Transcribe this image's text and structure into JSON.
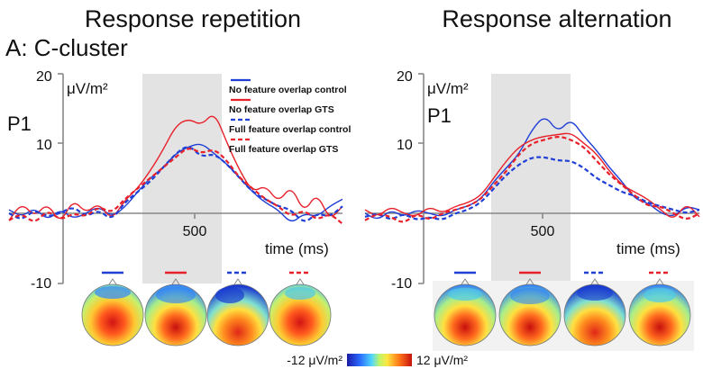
{
  "panel_label": "A: C-cluster",
  "units": {
    "y_unit": "μV/m²",
    "x_label": "time (ms)",
    "component": "P1"
  },
  "colorbar": {
    "min_label": "-12 μV/m²",
    "max_label": "12 μV/m²"
  },
  "colors": {
    "no_overlap_control": "#1f3fd6",
    "no_overlap_gts": "#e8202a",
    "shade": "#e3e3e3",
    "axis": "#888888"
  },
  "chart_data": [
    {
      "type": "line",
      "title": "Response repetition",
      "xlabel": "time (ms)",
      "ylabel": "μV/m²",
      "xlim": [
        -300,
        1000
      ],
      "ylim": [
        -10,
        20
      ],
      "ytick_labels": [
        "20",
        "10",
        "-10"
      ],
      "xtick_labels": [
        "500"
      ],
      "shaded_interval_ms": [
        300,
        600
      ],
      "component_label": "P1",
      "legend": [
        "No feature overlap control",
        "No feature overlap GTS",
        "Full feature overlap control",
        "Full feature overlap GTS"
      ],
      "series": [
        {
          "name": "No feature overlap control",
          "color": "#1f3fd6",
          "dash": "solid",
          "x": [
            -300,
            -250,
            -200,
            -150,
            -100,
            -50,
            0,
            50,
            100,
            150,
            200,
            250,
            300,
            350,
            400,
            450,
            500,
            550,
            600,
            650,
            700,
            750,
            800,
            850,
            900,
            950,
            1000
          ],
          "values": [
            0.5,
            -0.5,
            0.8,
            -1,
            0.6,
            -0.8,
            0,
            1,
            -0.5,
            0.8,
            3,
            5,
            6.5,
            8.5,
            9.5,
            10,
            8.5,
            7,
            5,
            3,
            1.5,
            0.5,
            -1.5,
            0,
            -0.5,
            1,
            2
          ]
        },
        {
          "name": "No feature overlap GTS",
          "color": "#e8202a",
          "dash": "solid",
          "x": [
            -300,
            -250,
            -200,
            -150,
            -100,
            -50,
            0,
            50,
            100,
            150,
            200,
            250,
            300,
            350,
            400,
            450,
            500,
            550,
            600,
            650,
            700,
            750,
            800,
            850,
            900,
            950,
            1000
          ],
          "values": [
            -1,
            1.5,
            -0.5,
            1.5,
            -1.5,
            2,
            0,
            1.5,
            -1,
            1.8,
            3.5,
            6,
            9,
            12.5,
            13.5,
            12.5,
            14.5,
            10,
            6,
            3,
            4,
            1.5,
            4,
            0,
            3,
            -1,
            1
          ]
        },
        {
          "name": "Full feature overlap control",
          "color": "#1f3fd6",
          "dash": "dashed",
          "x": [
            -300,
            -250,
            -200,
            -150,
            -100,
            -50,
            0,
            50,
            100,
            150,
            200,
            250,
            300,
            350,
            400,
            450,
            500,
            550,
            600,
            650,
            700,
            750,
            800,
            850,
            900,
            950,
            1000
          ],
          "values": [
            0,
            -1,
            0.5,
            -0.5,
            0,
            1,
            -0.5,
            0.5,
            -1,
            1.5,
            3,
            4.5,
            6.5,
            8.5,
            9.8,
            8,
            8.5,
            7,
            5,
            3,
            2,
            1,
            0.5,
            -1.5,
            0,
            -0.5,
            1
          ]
        },
        {
          "name": "Full feature overlap GTS",
          "color": "#e8202a",
          "dash": "dashed",
          "x": [
            -300,
            -250,
            -200,
            -150,
            -100,
            -50,
            0,
            50,
            100,
            150,
            200,
            250,
            300,
            350,
            400,
            450,
            500,
            550,
            600,
            650,
            700,
            750,
            800,
            850,
            900,
            950,
            1000
          ],
          "values": [
            -1,
            0,
            -1.5,
            0.5,
            -1,
            0,
            -0.5,
            1,
            0,
            2,
            3.5,
            5,
            6.5,
            8,
            9.5,
            8.5,
            9.2,
            7.5,
            5,
            3.5,
            2,
            1,
            -0.5,
            0.5,
            -1,
            0,
            -1.5
          ]
        }
      ]
    },
    {
      "type": "line",
      "title": "Response alternation",
      "xlabel": "time (ms)",
      "ylabel": "μV/m²",
      "xlim": [
        -300,
        1000
      ],
      "ylim": [
        -10,
        20
      ],
      "ytick_labels": [
        "20",
        "10",
        "-10"
      ],
      "xtick_labels": [
        "500"
      ],
      "shaded_interval_ms": [
        300,
        600
      ],
      "component_label": "P1",
      "series": [
        {
          "name": "No feature overlap control",
          "color": "#1f3fd6",
          "dash": "solid",
          "x": [
            -300,
            -250,
            -200,
            -150,
            -100,
            -50,
            0,
            50,
            100,
            150,
            200,
            250,
            300,
            350,
            400,
            450,
            500,
            550,
            600,
            650,
            700,
            750,
            800,
            850,
            900,
            950,
            1000
          ],
          "values": [
            0,
            -1,
            0.5,
            -0.5,
            0.5,
            0,
            -0.5,
            0.5,
            1,
            2,
            4.5,
            6.5,
            8.5,
            12,
            14,
            11.5,
            13.5,
            11,
            9,
            6.5,
            4.5,
            2,
            1.5,
            0,
            -0.5,
            1,
            0.5
          ]
        },
        {
          "name": "No feature overlap GTS",
          "color": "#e8202a",
          "dash": "solid",
          "x": [
            -300,
            -250,
            -200,
            -150,
            -100,
            -50,
            0,
            50,
            100,
            150,
            200,
            250,
            300,
            350,
            400,
            450,
            500,
            550,
            600,
            650,
            700,
            750,
            800,
            850,
            900,
            950,
            1000
          ],
          "values": [
            0.5,
            -0.5,
            1,
            0,
            -0.5,
            1,
            0,
            1,
            1.5,
            2.5,
            5,
            7.5,
            9.5,
            10.5,
            11,
            11.2,
            11.5,
            10,
            8.5,
            6,
            4,
            3,
            2,
            0.5,
            -1,
            1.5,
            -0.5
          ]
        },
        {
          "name": "Full feature overlap control",
          "color": "#1f3fd6",
          "dash": "dashed",
          "x": [
            -300,
            -250,
            -200,
            -150,
            -100,
            -50,
            0,
            50,
            100,
            150,
            200,
            250,
            300,
            350,
            400,
            450,
            500,
            550,
            600,
            650,
            700,
            750,
            800,
            850,
            900,
            950,
            1000
          ],
          "values": [
            -0.5,
            0,
            -1,
            0,
            -1,
            -0.5,
            -1,
            0,
            0.5,
            1.5,
            3.5,
            5.5,
            7,
            8,
            8,
            7.5,
            7.5,
            6.5,
            5,
            4,
            3,
            2.5,
            1.5,
            1,
            0.5,
            0,
            0.5
          ]
        },
        {
          "name": "Full feature overlap GTS",
          "color": "#e8202a",
          "dash": "dashed",
          "x": [
            -300,
            -250,
            -200,
            -150,
            -100,
            -50,
            0,
            50,
            100,
            150,
            200,
            250,
            300,
            350,
            400,
            450,
            500,
            550,
            600,
            650,
            700,
            750,
            800,
            850,
            900,
            950,
            1000
          ],
          "values": [
            -1,
            0,
            -0.5,
            -1.5,
            0,
            -1,
            0,
            0.5,
            1,
            2,
            4,
            6,
            8.5,
            10,
            10.5,
            11,
            10.5,
            9.5,
            7.5,
            5.5,
            4,
            2.5,
            1,
            1,
            0,
            -1,
            0
          ]
        }
      ]
    }
  ]
}
